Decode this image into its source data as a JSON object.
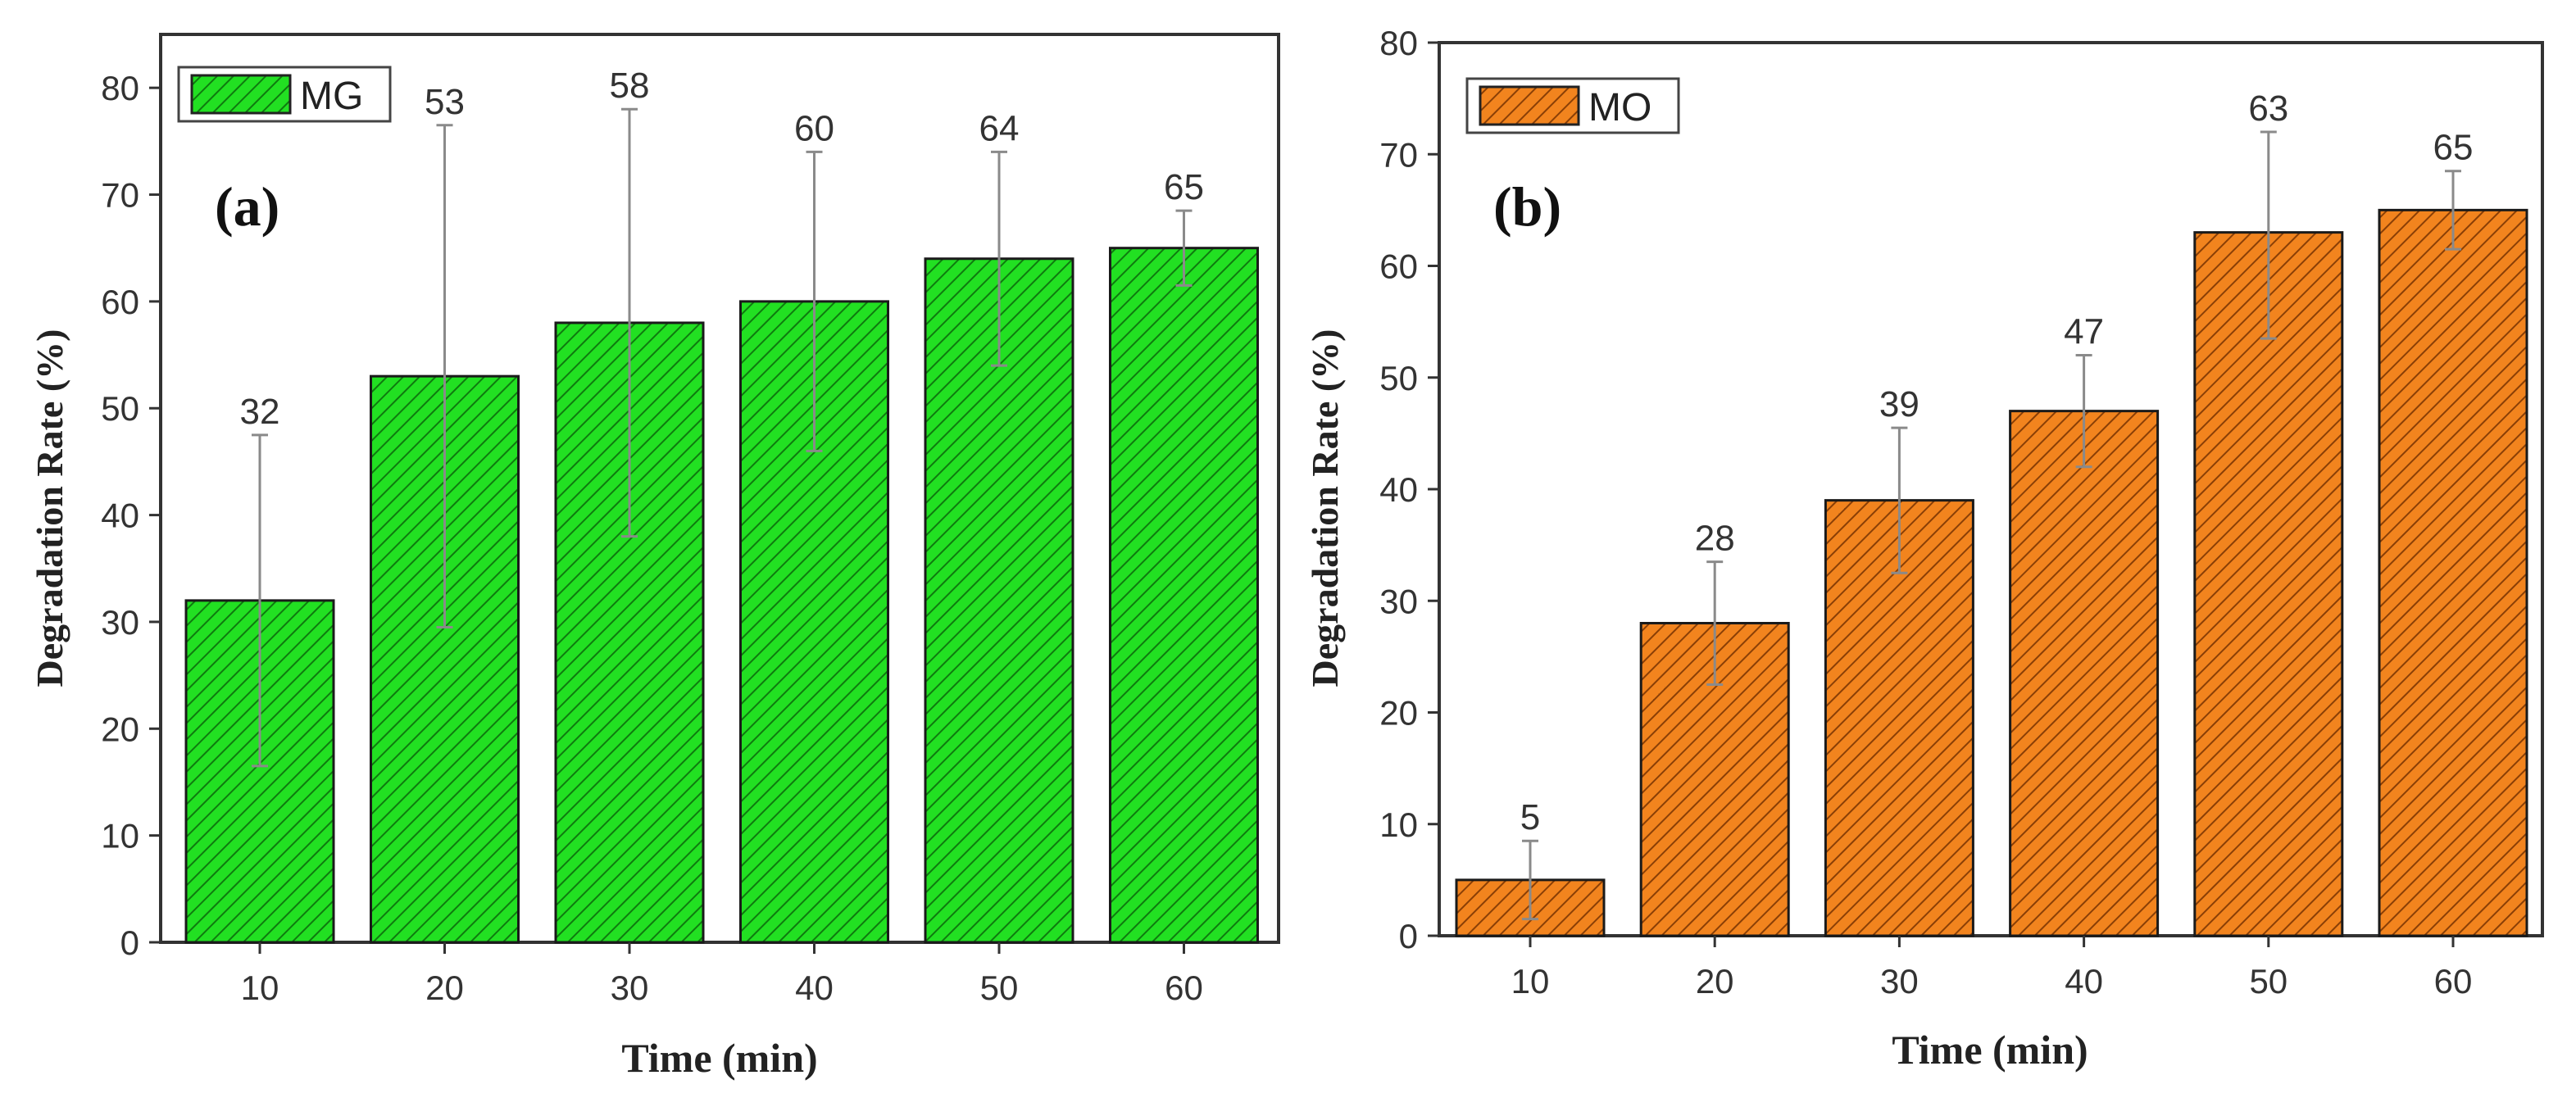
{
  "chart_data": [
    {
      "type": "bar",
      "panel_label": "(a)",
      "xlabel": "Time (min)",
      "ylabel": "Degradation Rate (%)",
      "ylim": [
        0,
        85
      ],
      "yticks": [
        0,
        10,
        20,
        30,
        40,
        50,
        60,
        70,
        80
      ],
      "categories": [
        "10",
        "20",
        "30",
        "40",
        "50",
        "60"
      ],
      "series": [
        {
          "name": "MG",
          "color": "#22e022",
          "hatch_color": "#0f7a0f",
          "values": [
            32,
            53,
            58,
            60,
            64,
            65
          ],
          "labels": [
            "32",
            "53",
            "58",
            "60",
            "64",
            "65"
          ],
          "err_low": [
            16.5,
            29.5,
            38,
            46,
            54,
            61.5
          ],
          "err_high": [
            47.5,
            76.5,
            78,
            74,
            74,
            68.5
          ]
        }
      ],
      "legend_position": "top-left"
    },
    {
      "type": "bar",
      "panel_label": "(b)",
      "xlabel": "Time (min)",
      "ylabel": "Degradation Rate (%)",
      "ylim": [
        0,
        80
      ],
      "yticks": [
        0,
        10,
        20,
        30,
        40,
        50,
        60,
        70,
        80
      ],
      "categories": [
        "10",
        "20",
        "30",
        "40",
        "50",
        "60"
      ],
      "series": [
        {
          "name": "MO",
          "color": "#f2841e",
          "hatch_color": "#8a3f06",
          "values": [
            5,
            28,
            39,
            47,
            63,
            65
          ],
          "labels": [
            "5",
            "28",
            "39",
            "47",
            "63",
            "65"
          ],
          "err_low": [
            1.5,
            22.5,
            32.5,
            42,
            53.5,
            61.5
          ],
          "err_high": [
            8.5,
            33.5,
            45.5,
            52,
            72,
            68.5
          ]
        }
      ],
      "legend_position": "top-left"
    }
  ]
}
